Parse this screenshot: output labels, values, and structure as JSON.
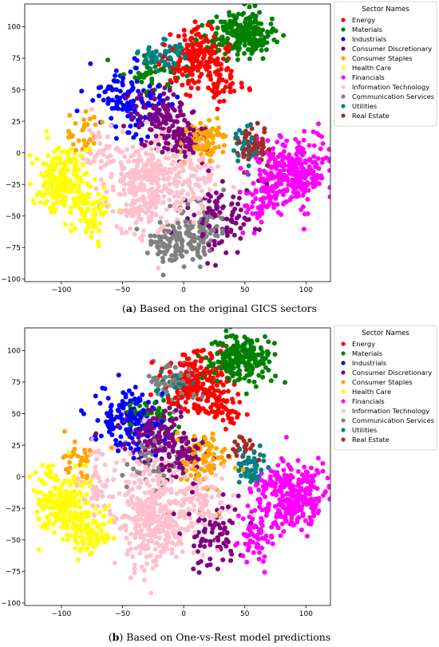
{
  "captions": [
    {
      "tag": "a",
      "text": "Based on the original GICS sectors"
    },
    {
      "tag": "b",
      "text": "Based on One-vs-Rest model predictions"
    }
  ],
  "chart_data": [
    {
      "type": "scatter",
      "title": "",
      "xlabel": "",
      "ylabel": "",
      "xlim": [
        -130,
        120
      ],
      "ylim": [
        -102,
        118
      ],
      "x_ticks": [
        -100,
        -50,
        0,
        50,
        100
      ],
      "y_ticks": [
        -100,
        -75,
        -50,
        -25,
        0,
        25,
        50,
        75,
        100
      ],
      "grid": false,
      "legend": {
        "title": "Sector Names",
        "placement": "outside-top-right"
      },
      "series": [
        {
          "name": "Energy",
          "color": "#ff0000",
          "clusters": [
            {
              "cx": 10,
              "cy": 75,
              "sx": 13,
              "sy": 12,
              "n": 170
            },
            {
              "cx": 28,
              "cy": 55,
              "sx": 10,
              "sy": 8,
              "n": 50
            }
          ]
        },
        {
          "name": "Materials",
          "color": "#008000",
          "clusters": [
            {
              "cx": 47,
              "cy": 95,
              "sx": 13,
              "sy": 9,
              "n": 230
            },
            {
              "cx": -25,
              "cy": 60,
              "sx": 12,
              "sy": 8,
              "n": 40
            }
          ]
        },
        {
          "name": "Industrials",
          "color": "#0000ff",
          "clusters": [
            {
              "cx": -45,
              "cy": 40,
              "sx": 14,
              "sy": 15,
              "n": 120
            }
          ]
        },
        {
          "name": "Consumer Discretionary",
          "color": "#800080",
          "clusters": [
            {
              "cx": -20,
              "cy": 30,
              "sx": 12,
              "sy": 10,
              "n": 120
            },
            {
              "cx": 0,
              "cy": 10,
              "sx": 10,
              "sy": 8,
              "n": 80
            },
            {
              "cx": 30,
              "cy": -50,
              "sx": 14,
              "sy": 14,
              "n": 90
            }
          ]
        },
        {
          "name": "Consumer Staples",
          "color": "#ffa500",
          "clusters": [
            {
              "cx": 15,
              "cy": 10,
              "sx": 10,
              "sy": 9,
              "n": 90
            },
            {
              "cx": -85,
              "cy": 15,
              "sx": 8,
              "sy": 10,
              "n": 30
            }
          ]
        },
        {
          "name": "Health Care",
          "color": "#ffff00",
          "clusters": [
            {
              "cx": -100,
              "cy": -20,
              "sx": 11,
              "sy": 14,
              "n": 200
            },
            {
              "cx": -75,
              "cy": -45,
              "sx": 9,
              "sy": 9,
              "n": 80
            }
          ]
        },
        {
          "name": "Financials",
          "color": "#ff00ff",
          "clusters": [
            {
              "cx": 90,
              "cy": -15,
              "sx": 15,
              "sy": 13,
              "n": 300
            },
            {
              "cx": 60,
              "cy": -40,
              "sx": 8,
              "sy": 10,
              "n": 50
            }
          ]
        },
        {
          "name": "Information Technology",
          "color": "#ffc0cb",
          "clusters": [
            {
              "cx": -30,
              "cy": -25,
              "sx": 14,
              "sy": 20,
              "n": 330
            },
            {
              "cx": 10,
              "cy": -20,
              "sx": 10,
              "sy": 15,
              "n": 90
            },
            {
              "cx": -70,
              "cy": 0,
              "sx": 8,
              "sy": 14,
              "n": 50
            }
          ]
        },
        {
          "name": "Communication Services",
          "color": "#808080",
          "clusters": [
            {
              "cx": -5,
              "cy": -70,
              "sx": 13,
              "sy": 9,
              "n": 140
            },
            {
              "cx": 20,
              "cy": -55,
              "sx": 9,
              "sy": 9,
              "n": 40
            }
          ]
        },
        {
          "name": "Utilities",
          "color": "#008080",
          "clusters": [
            {
              "cx": -15,
              "cy": 75,
              "sx": 10,
              "sy": 6,
              "n": 70
            },
            {
              "cx": 50,
              "cy": 5,
              "sx": 6,
              "sy": 8,
              "n": 30
            }
          ]
        },
        {
          "name": "Real Estate",
          "color": "#a52a2a",
          "clusters": [
            {
              "cx": 57,
              "cy": 5,
              "sx": 7,
              "sy": 6,
              "n": 60
            }
          ]
        }
      ]
    },
    {
      "type": "scatter",
      "title": "",
      "xlabel": "",
      "ylabel": "",
      "xlim": [
        -130,
        120
      ],
      "ylim": [
        -102,
        118
      ],
      "x_ticks": [
        -100,
        -50,
        0,
        50,
        100
      ],
      "y_ticks": [
        -100,
        -75,
        -50,
        -25,
        0,
        25,
        50,
        75,
        100
      ],
      "grid": false,
      "legend": {
        "title": "Sector Names",
        "placement": "outside-top-right"
      },
      "series": [
        {
          "name": "Energy",
          "color": "#ff0000",
          "clusters": [
            {
              "cx": 10,
              "cy": 75,
              "sx": 13,
              "sy": 12,
              "n": 180
            },
            {
              "cx": 28,
              "cy": 55,
              "sx": 10,
              "sy": 8,
              "n": 60
            }
          ]
        },
        {
          "name": "Materials",
          "color": "#008000",
          "clusters": [
            {
              "cx": 47,
              "cy": 93,
              "sx": 13,
              "sy": 9,
              "n": 230
            },
            {
              "cx": -25,
              "cy": 50,
              "sx": 12,
              "sy": 8,
              "n": 40
            }
          ]
        },
        {
          "name": "Industrials",
          "color": "#0000ff",
          "clusters": [
            {
              "cx": -45,
              "cy": 45,
              "sx": 13,
              "sy": 14,
              "n": 150
            }
          ]
        },
        {
          "name": "Consumer Discretionary",
          "color": "#800080",
          "clusters": [
            {
              "cx": -25,
              "cy": 35,
              "sx": 12,
              "sy": 10,
              "n": 120
            },
            {
              "cx": 0,
              "cy": 15,
              "sx": 10,
              "sy": 8,
              "n": 80
            },
            {
              "cx": 25,
              "cy": -45,
              "sx": 14,
              "sy": 14,
              "n": 80
            }
          ]
        },
        {
          "name": "Consumer Staples",
          "color": "#ffa500",
          "clusters": [
            {
              "cx": 15,
              "cy": 15,
              "sx": 10,
              "sy": 9,
              "n": 90
            },
            {
              "cx": -85,
              "cy": 15,
              "sx": 8,
              "sy": 10,
              "n": 30
            }
          ]
        },
        {
          "name": "Health Care",
          "color": "#ffff00",
          "clusters": [
            {
              "cx": -100,
              "cy": -20,
              "sx": 11,
              "sy": 14,
              "n": 200
            },
            {
              "cx": -75,
              "cy": -45,
              "sx": 9,
              "sy": 9,
              "n": 80
            }
          ]
        },
        {
          "name": "Financials",
          "color": "#ff00ff",
          "clusters": [
            {
              "cx": 90,
              "cy": -15,
              "sx": 15,
              "sy": 13,
              "n": 300
            },
            {
              "cx": 60,
              "cy": -45,
              "sx": 8,
              "sy": 10,
              "n": 60
            }
          ]
        },
        {
          "name": "Information Technology",
          "color": "#ffc0cb",
          "clusters": [
            {
              "cx": -25,
              "cy": -30,
              "sx": 15,
              "sy": 22,
              "n": 360
            },
            {
              "cx": 15,
              "cy": -20,
              "sx": 10,
              "sy": 15,
              "n": 90
            },
            {
              "cx": -70,
              "cy": 0,
              "sx": 8,
              "sy": 14,
              "n": 50
            }
          ]
        },
        {
          "name": "Communication Services",
          "color": "#808080",
          "clusters": [
            {
              "cx": -10,
              "cy": 75,
              "sx": 9,
              "sy": 7,
              "n": 60
            },
            {
              "cx": -30,
              "cy": 10,
              "sx": 10,
              "sy": 10,
              "n": 40
            }
          ]
        },
        {
          "name": "Utilities",
          "color": "#008080",
          "clusters": [
            {
              "cx": 55,
              "cy": 5,
              "sx": 6,
              "sy": 7,
              "n": 50
            },
            {
              "cx": -10,
              "cy": 75,
              "sx": 8,
              "sy": 5,
              "n": 25
            }
          ]
        },
        {
          "name": "Real Estate",
          "color": "#a52a2a",
          "clusters": [
            {
              "cx": 50,
              "cy": 20,
              "sx": 6,
              "sy": 6,
              "n": 25
            }
          ]
        }
      ]
    }
  ]
}
